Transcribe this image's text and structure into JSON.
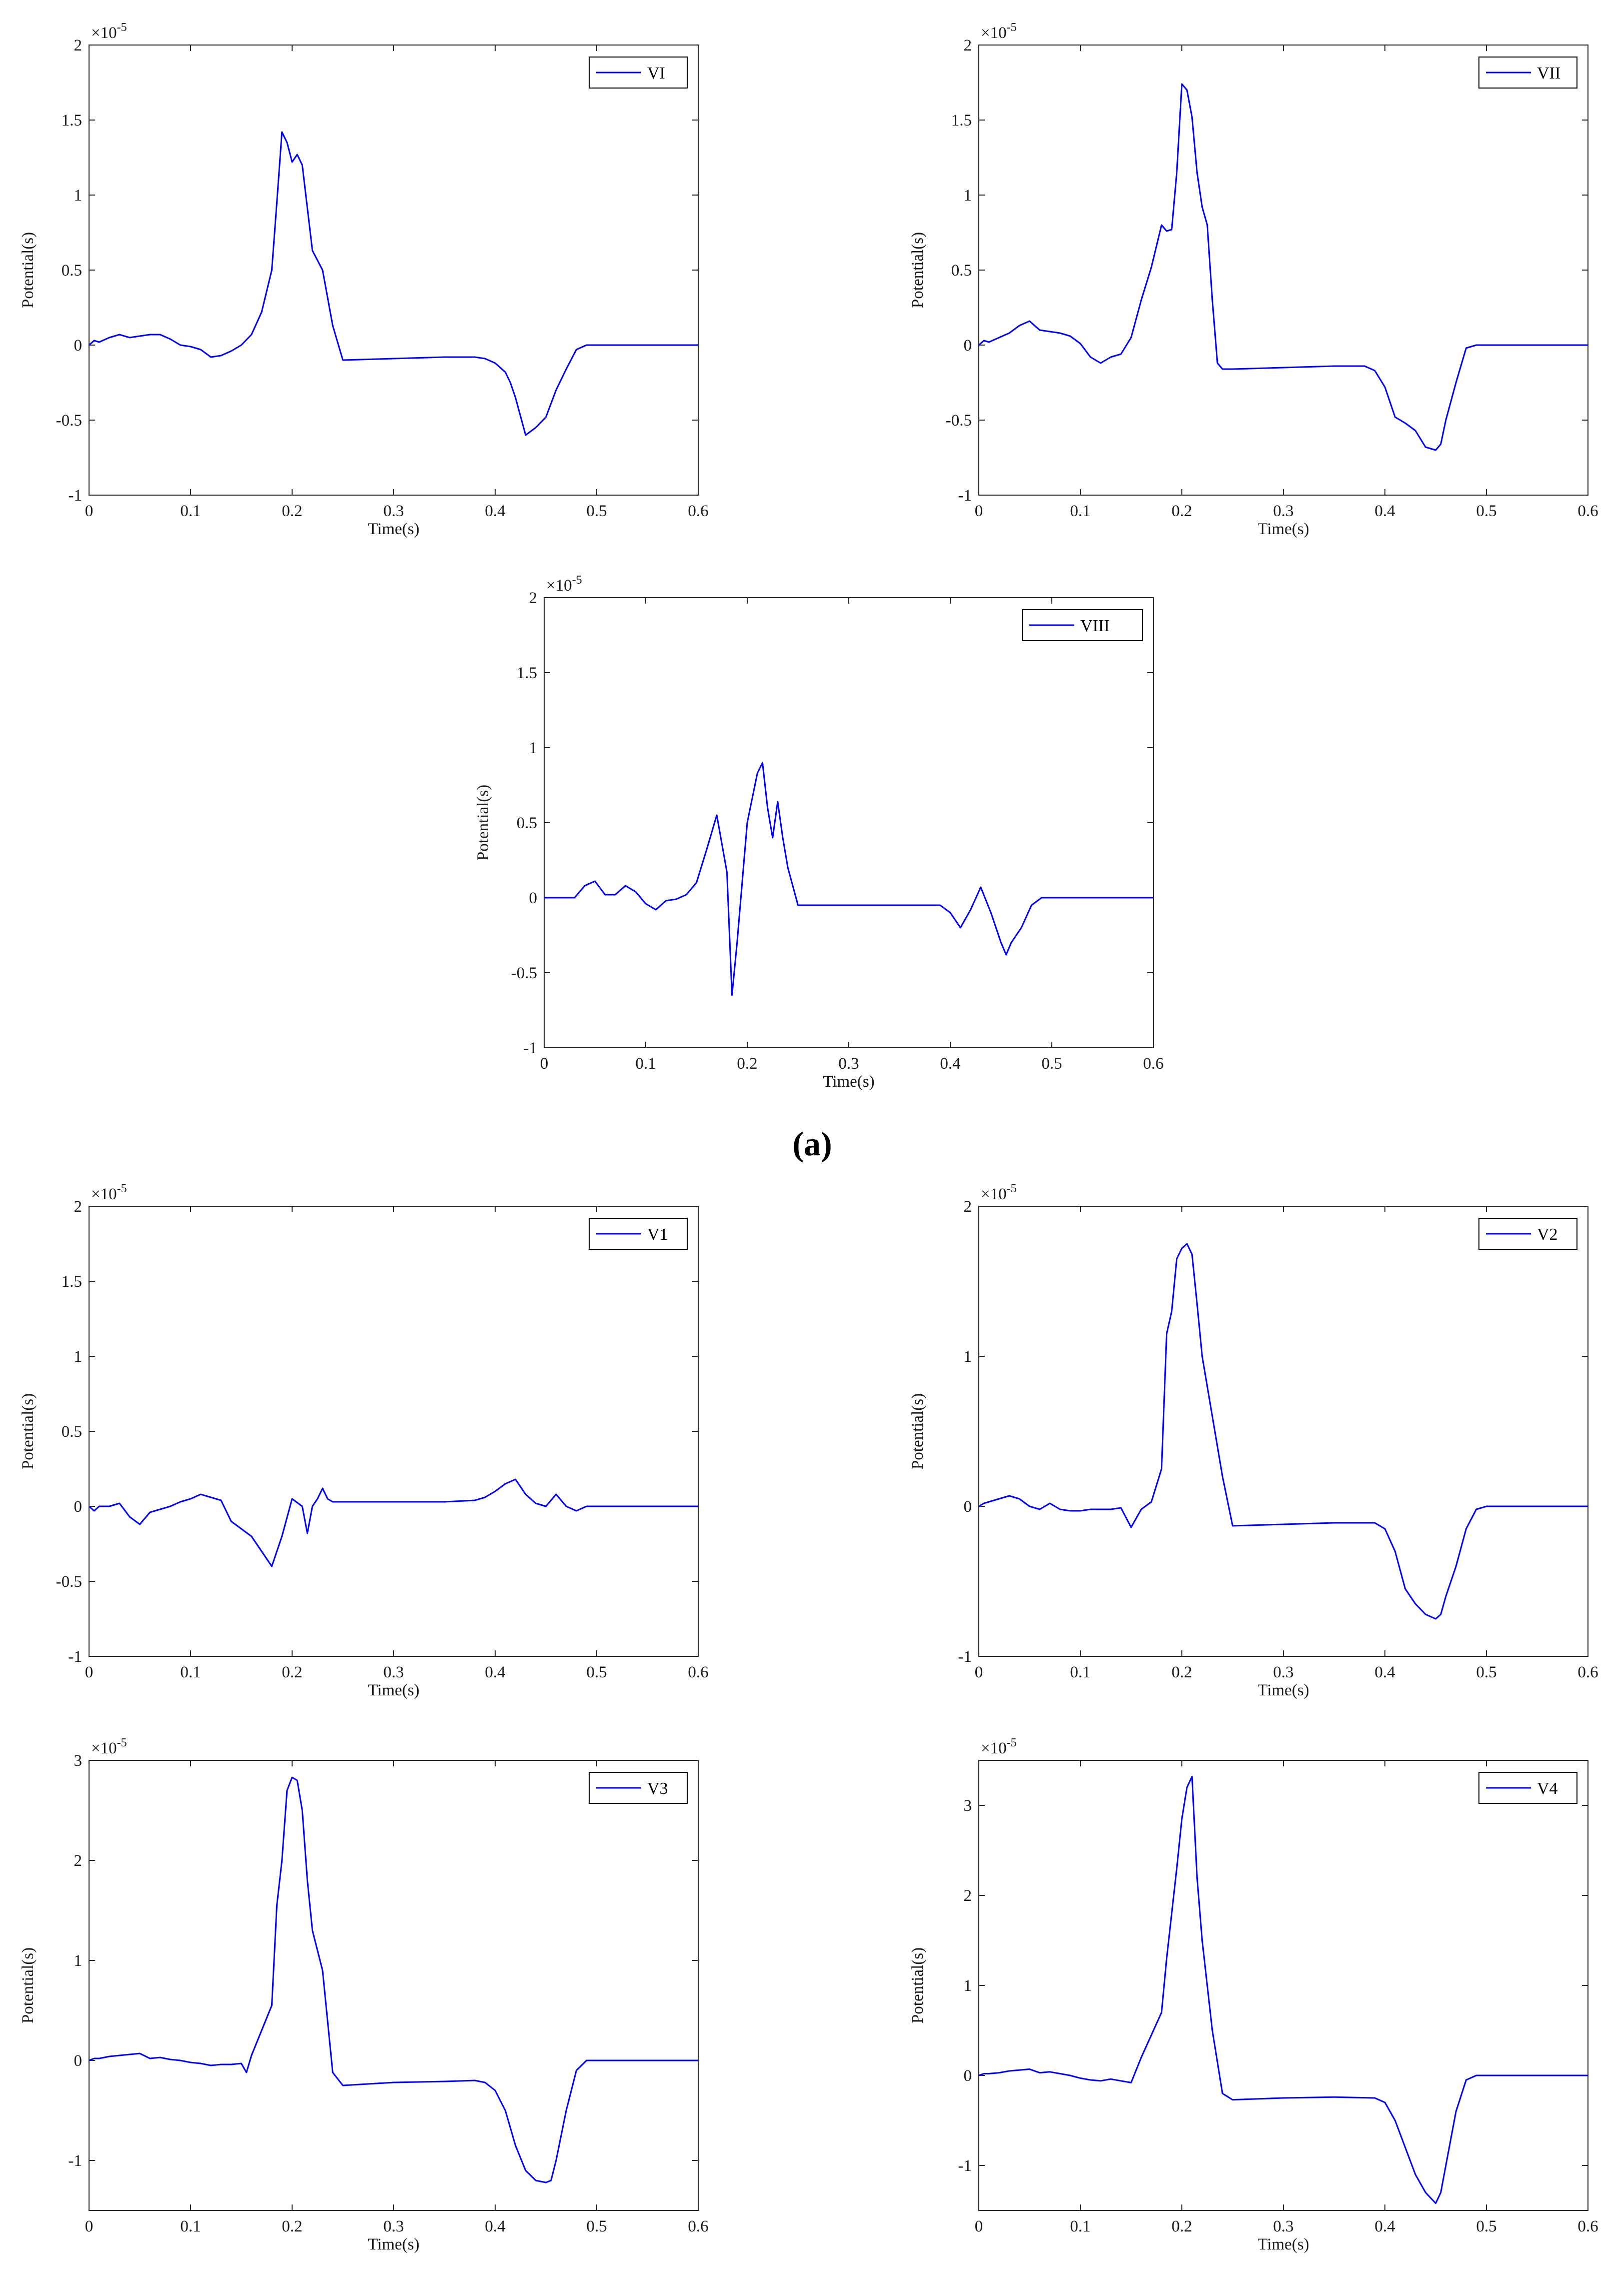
{
  "figure": {
    "panel_labels": [
      {
        "open": "(",
        "letter": "a",
        "close": ")"
      }
    ]
  },
  "style": {
    "line_color": "#0000ff",
    "axis_color": "#262626"
  },
  "chart_data": [
    {
      "type": "line",
      "title": "",
      "xlabel": "Time(s)",
      "ylabel": "Potential(s)",
      "xlim": [
        0,
        0.6
      ],
      "ylim": [
        -1,
        2
      ],
      "xticks": [
        0,
        0.1,
        0.2,
        0.3,
        0.4,
        0.5,
        0.6
      ],
      "xtick_labels": [
        "0",
        "0.1",
        "0.2",
        "0.3",
        "0.4",
        "0.5",
        "0.6"
      ],
      "yticks": [
        -1,
        -0.5,
        0,
        0.5,
        1,
        1.5,
        2
      ],
      "ytick_labels": [
        "-1",
        "-0.5",
        "0",
        "0.5",
        "1",
        "1.5",
        "2"
      ],
      "exponent": {
        "base": "×10",
        "power": "-5"
      },
      "legend": "top-right",
      "grid": false,
      "series": [
        {
          "name": "VI",
          "x": [
            0,
            0.005,
            0.01,
            0.02,
            0.03,
            0.04,
            0.05,
            0.06,
            0.07,
            0.08,
            0.09,
            0.1,
            0.11,
            0.12,
            0.13,
            0.14,
            0.15,
            0.16,
            0.17,
            0.18,
            0.185,
            0.19,
            0.195,
            0.2,
            0.205,
            0.21,
            0.22,
            0.23,
            0.24,
            0.25,
            0.3,
            0.35,
            0.38,
            0.39,
            0.4,
            0.41,
            0.415,
            0.42,
            0.43,
            0.44,
            0.45,
            0.46,
            0.47,
            0.48,
            0.49,
            0.5,
            0.55,
            0.6
          ],
          "y": [
            0,
            0.03,
            0.02,
            0.05,
            0.07,
            0.05,
            0.06,
            0.07,
            0.07,
            0.04,
            0,
            -0.01,
            -0.03,
            -0.08,
            -0.07,
            -0.04,
            0,
            0.07,
            0.22,
            0.5,
            0.95,
            1.42,
            1.35,
            1.22,
            1.27,
            1.2,
            0.63,
            0.5,
            0.13,
            -0.1,
            -0.09,
            -0.08,
            -0.08,
            -0.09,
            -0.12,
            -0.18,
            -0.25,
            -0.35,
            -0.6,
            -0.55,
            -0.48,
            -0.3,
            -0.16,
            -0.03,
            0,
            0,
            0,
            0
          ]
        }
      ]
    },
    {
      "type": "line",
      "title": "",
      "xlabel": "Time(s)",
      "ylabel": "Potential(s)",
      "xlim": [
        0,
        0.6
      ],
      "ylim": [
        -1,
        2
      ],
      "xticks": [
        0,
        0.1,
        0.2,
        0.3,
        0.4,
        0.5,
        0.6
      ],
      "xtick_labels": [
        "0",
        "0.1",
        "0.2",
        "0.3",
        "0.4",
        "0.5",
        "0.6"
      ],
      "yticks": [
        -1,
        -0.5,
        0,
        0.5,
        1,
        1.5,
        2
      ],
      "ytick_labels": [
        "-1",
        "-0.5",
        "0",
        "0.5",
        "1",
        "1.5",
        "2"
      ],
      "exponent": {
        "base": "×10",
        "power": "-5"
      },
      "legend": "top-right",
      "grid": false,
      "series": [
        {
          "name": "VII",
          "x": [
            0,
            0.005,
            0.01,
            0.02,
            0.03,
            0.04,
            0.05,
            0.06,
            0.07,
            0.08,
            0.09,
            0.1,
            0.11,
            0.12,
            0.13,
            0.14,
            0.15,
            0.16,
            0.17,
            0.18,
            0.185,
            0.19,
            0.195,
            0.2,
            0.205,
            0.21,
            0.215,
            0.22,
            0.225,
            0.23,
            0.235,
            0.24,
            0.25,
            0.3,
            0.35,
            0.38,
            0.39,
            0.4,
            0.41,
            0.42,
            0.43,
            0.44,
            0.45,
            0.455,
            0.46,
            0.47,
            0.48,
            0.49,
            0.5,
            0.55,
            0.6
          ],
          "y": [
            0,
            0.03,
            0.02,
            0.05,
            0.08,
            0.13,
            0.16,
            0.1,
            0.09,
            0.08,
            0.06,
            0.01,
            -0.08,
            -0.12,
            -0.08,
            -0.06,
            0.05,
            0.3,
            0.52,
            0.8,
            0.76,
            0.77,
            1.15,
            1.74,
            1.7,
            1.52,
            1.15,
            0.92,
            0.8,
            0.3,
            -0.12,
            -0.16,
            -0.16,
            -0.15,
            -0.14,
            -0.14,
            -0.17,
            -0.28,
            -0.48,
            -0.52,
            -0.57,
            -0.68,
            -0.7,
            -0.66,
            -0.5,
            -0.25,
            -0.02,
            0,
            0,
            0,
            0
          ]
        }
      ]
    },
    {
      "type": "line",
      "title": "",
      "xlabel": "Time(s)",
      "ylabel": "Potential(s)",
      "xlim": [
        0,
        0.6
      ],
      "ylim": [
        -1,
        2
      ],
      "xticks": [
        0,
        0.1,
        0.2,
        0.3,
        0.4,
        0.5,
        0.6
      ],
      "xtick_labels": [
        "0",
        "0.1",
        "0.2",
        "0.3",
        "0.4",
        "0.5",
        "0.6"
      ],
      "yticks": [
        -1,
        -0.5,
        0,
        0.5,
        1,
        1.5,
        2
      ],
      "ytick_labels": [
        "-1",
        "-0.5",
        "0",
        "0.5",
        "1",
        "1.5",
        "2"
      ],
      "exponent": {
        "base": "×10",
        "power": "-5"
      },
      "legend": "top-right",
      "grid": false,
      "series": [
        {
          "name": "VIII",
          "x": [
            0,
            0.01,
            0.02,
            0.03,
            0.04,
            0.05,
            0.06,
            0.07,
            0.08,
            0.09,
            0.1,
            0.11,
            0.12,
            0.13,
            0.14,
            0.15,
            0.16,
            0.17,
            0.18,
            0.185,
            0.19,
            0.2,
            0.21,
            0.215,
            0.22,
            0.225,
            0.23,
            0.235,
            0.24,
            0.25,
            0.3,
            0.35,
            0.39,
            0.4,
            0.41,
            0.42,
            0.43,
            0.44,
            0.45,
            0.455,
            0.46,
            0.47,
            0.48,
            0.49,
            0.5,
            0.55,
            0.6
          ],
          "y": [
            0,
            0,
            0,
            0,
            0.08,
            0.11,
            0.02,
            0.02,
            0.08,
            0.04,
            -0.04,
            -0.08,
            -0.02,
            -0.01,
            0.02,
            0.1,
            0.32,
            0.55,
            0.17,
            -0.65,
            -0.3,
            0.5,
            0.83,
            0.9,
            0.6,
            0.4,
            0.64,
            0.4,
            0.2,
            -0.05,
            -0.05,
            -0.05,
            -0.05,
            -0.1,
            -0.2,
            -0.08,
            0.07,
            -0.1,
            -0.3,
            -0.38,
            -0.3,
            -0.2,
            -0.05,
            0,
            0,
            0,
            0
          ]
        }
      ]
    },
    {
      "type": "line",
      "title": "",
      "xlabel": "Time(s)",
      "ylabel": "Potential(s)",
      "xlim": [
        0,
        0.6
      ],
      "ylim": [
        -1,
        2
      ],
      "xticks": [
        0,
        0.1,
        0.2,
        0.3,
        0.4,
        0.5,
        0.6
      ],
      "xtick_labels": [
        "0",
        "0.1",
        "0.2",
        "0.3",
        "0.4",
        "0.5",
        "0.6"
      ],
      "yticks": [
        -1,
        -0.5,
        0,
        0.5,
        1,
        1.5,
        2
      ],
      "ytick_labels": [
        "-1",
        "-0.5",
        "0",
        "0.5",
        "1",
        "1.5",
        "2"
      ],
      "exponent": {
        "base": "×10",
        "power": "-5"
      },
      "legend": "top-right",
      "grid": false,
      "series": [
        {
          "name": "V1",
          "x": [
            0,
            0.005,
            0.01,
            0.02,
            0.03,
            0.04,
            0.05,
            0.06,
            0.07,
            0.08,
            0.09,
            0.1,
            0.11,
            0.12,
            0.13,
            0.14,
            0.15,
            0.16,
            0.17,
            0.18,
            0.19,
            0.2,
            0.21,
            0.215,
            0.22,
            0.225,
            0.23,
            0.235,
            0.24,
            0.25,
            0.3,
            0.35,
            0.38,
            0.39,
            0.4,
            0.41,
            0.42,
            0.43,
            0.44,
            0.45,
            0.46,
            0.47,
            0.48,
            0.49,
            0.5,
            0.55,
            0.6
          ],
          "y": [
            0,
            -0.03,
            0,
            0,
            0.02,
            -0.07,
            -0.12,
            -0.04,
            -0.02,
            0,
            0.03,
            0.05,
            0.08,
            0.06,
            0.04,
            -0.1,
            -0.15,
            -0.2,
            -0.3,
            -0.4,
            -0.2,
            0.05,
            0,
            -0.18,
            0,
            0.05,
            0.12,
            0.05,
            0.03,
            0.03,
            0.03,
            0.03,
            0.04,
            0.06,
            0.1,
            0.15,
            0.18,
            0.08,
            0.02,
            0,
            0.08,
            0,
            -0.03,
            0,
            0,
            0,
            0
          ]
        }
      ]
    },
    {
      "type": "line",
      "title": "",
      "xlabel": "Time(s)",
      "ylabel": "Potential(s)",
      "xlim": [
        0,
        0.6
      ],
      "ylim": [
        -1,
        2
      ],
      "xticks": [
        0,
        0.1,
        0.2,
        0.3,
        0.4,
        0.5,
        0.6
      ],
      "xtick_labels": [
        "0",
        "0.1",
        "0.2",
        "0.3",
        "0.4",
        "0.5",
        "0.6"
      ],
      "yticks": [
        -1,
        0,
        1,
        2
      ],
      "ytick_labels": [
        "-1",
        "0",
        "1",
        "2"
      ],
      "exponent": {
        "base": "×10",
        "power": "-5"
      },
      "legend": "top-right",
      "grid": false,
      "series": [
        {
          "name": "V2",
          "x": [
            0,
            0.005,
            0.01,
            0.02,
            0.03,
            0.04,
            0.05,
            0.06,
            0.07,
            0.08,
            0.09,
            0.1,
            0.11,
            0.12,
            0.13,
            0.14,
            0.15,
            0.16,
            0.17,
            0.18,
            0.185,
            0.19,
            0.195,
            0.2,
            0.205,
            0.21,
            0.215,
            0.22,
            0.23,
            0.24,
            0.25,
            0.3,
            0.35,
            0.39,
            0.4,
            0.41,
            0.42,
            0.43,
            0.44,
            0.45,
            0.455,
            0.46,
            0.47,
            0.48,
            0.49,
            0.5,
            0.55,
            0.6
          ],
          "y": [
            0,
            0.02,
            0.03,
            0.05,
            0.07,
            0.05,
            0,
            -0.02,
            0.02,
            -0.02,
            -0.03,
            -0.03,
            -0.02,
            -0.02,
            -0.02,
            -0.01,
            -0.14,
            -0.02,
            0.03,
            0.25,
            1.15,
            1.3,
            1.65,
            1.72,
            1.75,
            1.68,
            1.35,
            1,
            0.6,
            0.2,
            -0.13,
            -0.12,
            -0.11,
            -0.11,
            -0.15,
            -0.3,
            -0.55,
            -0.65,
            -0.72,
            -0.75,
            -0.72,
            -0.6,
            -0.4,
            -0.15,
            -0.02,
            0,
            0,
            0
          ]
        }
      ]
    },
    {
      "type": "line",
      "title": "",
      "xlabel": "Time(s)",
      "ylabel": "Potential(s)",
      "xlim": [
        0,
        0.6
      ],
      "ylim": [
        -1.5,
        3
      ],
      "xticks": [
        0,
        0.1,
        0.2,
        0.3,
        0.4,
        0.5,
        0.6
      ],
      "xtick_labels": [
        "0",
        "0.1",
        "0.2",
        "0.3",
        "0.4",
        "0.5",
        "0.6"
      ],
      "yticks": [
        -1,
        0,
        1,
        2,
        3
      ],
      "ytick_labels": [
        "-1",
        "0",
        "1",
        "2",
        "3"
      ],
      "exponent": {
        "base": "×10",
        "power": "-5"
      },
      "legend": "top-right",
      "grid": false,
      "series": [
        {
          "name": "V3",
          "x": [
            0,
            0.005,
            0.01,
            0.02,
            0.03,
            0.04,
            0.05,
            0.06,
            0.07,
            0.08,
            0.09,
            0.1,
            0.11,
            0.12,
            0.13,
            0.14,
            0.15,
            0.155,
            0.16,
            0.17,
            0.18,
            0.185,
            0.19,
            0.195,
            0.2,
            0.205,
            0.21,
            0.215,
            0.22,
            0.23,
            0.24,
            0.25,
            0.3,
            0.35,
            0.38,
            0.39,
            0.4,
            0.41,
            0.42,
            0.43,
            0.44,
            0.45,
            0.455,
            0.46,
            0.47,
            0.48,
            0.49,
            0.5,
            0.55,
            0.6
          ],
          "y": [
            0,
            0.02,
            0.02,
            0.04,
            0.05,
            0.06,
            0.07,
            0.02,
            0.03,
            0.01,
            0,
            -0.02,
            -0.03,
            -0.05,
            -0.04,
            -0.04,
            -0.03,
            -0.12,
            0.05,
            0.3,
            0.55,
            1.55,
            2,
            2.7,
            2.83,
            2.8,
            2.5,
            1.8,
            1.3,
            0.9,
            -0.12,
            -0.25,
            -0.22,
            -0.21,
            -0.2,
            -0.22,
            -0.3,
            -0.5,
            -0.85,
            -1.1,
            -1.2,
            -1.22,
            -1.2,
            -1,
            -0.5,
            -0.1,
            0,
            0,
            0,
            0
          ]
        }
      ]
    },
    {
      "type": "line",
      "title": "",
      "xlabel": "Time(s)",
      "ylabel": "Potential(s)",
      "xlim": [
        0,
        0.6
      ],
      "ylim": [
        -1.5,
        3.5
      ],
      "xticks": [
        0,
        0.1,
        0.2,
        0.3,
        0.4,
        0.5,
        0.6
      ],
      "xtick_labels": [
        "0",
        "0.1",
        "0.2",
        "0.3",
        "0.4",
        "0.5",
        "0.6"
      ],
      "yticks": [
        -1,
        0,
        1,
        2,
        3
      ],
      "ytick_labels": [
        "-1",
        "0",
        "1",
        "2",
        "3"
      ],
      "exponent": {
        "base": "×10",
        "power": "-5"
      },
      "legend": "top-right",
      "grid": false,
      "series": [
        {
          "name": "V4",
          "x": [
            0,
            0.005,
            0.01,
            0.02,
            0.03,
            0.04,
            0.05,
            0.06,
            0.07,
            0.08,
            0.09,
            0.1,
            0.11,
            0.12,
            0.13,
            0.14,
            0.15,
            0.16,
            0.17,
            0.18,
            0.185,
            0.19,
            0.195,
            0.2,
            0.205,
            0.21,
            0.215,
            0.22,
            0.23,
            0.24,
            0.25,
            0.3,
            0.35,
            0.39,
            0.4,
            0.41,
            0.42,
            0.43,
            0.44,
            0.45,
            0.455,
            0.46,
            0.47,
            0.48,
            0.49,
            0.5,
            0.55,
            0.6
          ],
          "y": [
            0,
            0.02,
            0.02,
            0.03,
            0.05,
            0.06,
            0.07,
            0.03,
            0.04,
            0.02,
            0,
            -0.03,
            -0.05,
            -0.06,
            -0.04,
            -0.06,
            -0.08,
            0.2,
            0.45,
            0.7,
            1.3,
            1.8,
            2.3,
            2.85,
            3.2,
            3.32,
            2.2,
            1.5,
            0.5,
            -0.2,
            -0.27,
            -0.25,
            -0.24,
            -0.25,
            -0.3,
            -0.5,
            -0.8,
            -1.1,
            -1.3,
            -1.42,
            -1.3,
            -1,
            -0.4,
            -0.05,
            0,
            0,
            0,
            0
          ]
        }
      ]
    }
  ]
}
